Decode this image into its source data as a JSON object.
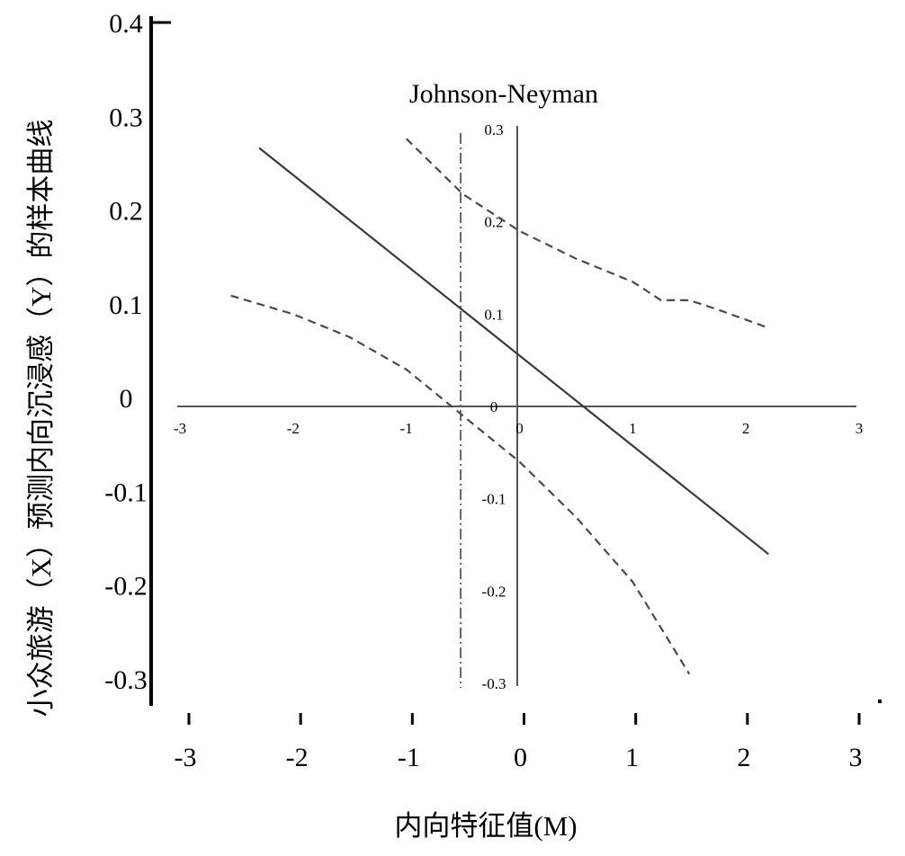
{
  "chart_data": {
    "type": "line",
    "title": "Johnson-Neyman",
    "xlabel": "内向特征值(M)",
    "ylabel": "小众旅游（X）预测内向沉浸感（Y）的样本曲线",
    "outer_axes": {
      "xlim": [
        -3,
        3
      ],
      "ylim": [
        -0.3,
        0.4
      ],
      "x_ticks": [
        "-3",
        "-2",
        "-1",
        "0",
        "1",
        "2",
        "3"
      ],
      "y_ticks": [
        "0.4",
        "0.3",
        "0.2",
        "0.1",
        "0",
        "-0.1",
        "-0.2",
        "-0.3"
      ]
    },
    "inner_axes": {
      "xlim": [
        -3,
        3
      ],
      "ylim": [
        -0.3,
        0.3
      ],
      "x_ticks": [
        "-3",
        "-2",
        "-1",
        "0",
        "1",
        "2",
        "3"
      ],
      "y_ticks": [
        "0.3",
        "0.2",
        "0.1",
        "0",
        "-0.1",
        "-0.2",
        "-0.3"
      ]
    },
    "series": [
      {
        "role": "estimate",
        "line_style": "solid",
        "x": [
          -2.3,
          2.2
        ],
        "y": [
          0.28,
          -0.16
        ]
      },
      {
        "role": "upper_ci",
        "line_style": "dashed",
        "x": [
          -1.0,
          -0.5,
          0.0,
          0.5,
          1.0,
          1.25,
          1.5,
          1.75,
          2.2
        ],
        "y": [
          0.29,
          0.23,
          0.19,
          0.16,
          0.135,
          0.115,
          0.115,
          0.105,
          0.085
        ]
      },
      {
        "role": "lower_ci",
        "line_style": "dashed",
        "x": [
          -2.55,
          -2.0,
          -1.5,
          -1.0,
          -0.5,
          0.0,
          0.5,
          1.0,
          1.5
        ],
        "y": [
          0.12,
          0.1,
          0.075,
          0.04,
          -0.01,
          -0.06,
          -0.12,
          -0.19,
          -0.29
        ]
      }
    ],
    "reference_lines": [
      {
        "orientation": "vertical",
        "x": -0.52,
        "line_style": "dash-dot"
      }
    ],
    "grid": false,
    "legend": "none"
  }
}
